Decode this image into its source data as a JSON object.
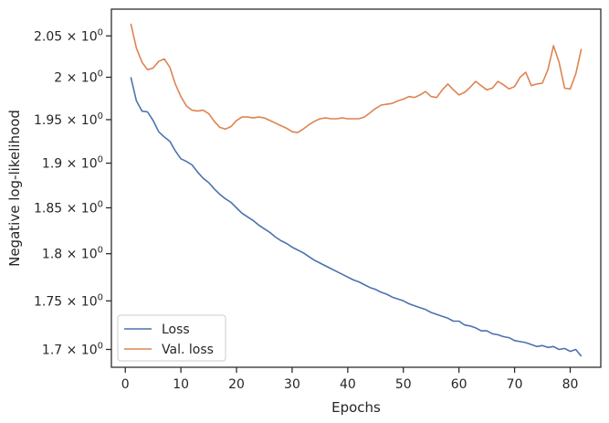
{
  "chart_data": {
    "type": "line",
    "xlabel": "Epochs",
    "ylabel": "Negative log-likelihood",
    "xlim": [
      -2.5,
      85.5
    ],
    "ylim": [
      1.682,
      2.083
    ],
    "yscale": "log",
    "grid": false,
    "legend_position": "lower-left",
    "x_ticks": [
      0,
      10,
      20,
      30,
      40,
      50,
      60,
      70,
      80
    ],
    "x_tick_labels": [
      "0",
      "10",
      "20",
      "30",
      "40",
      "50",
      "60",
      "70",
      "80"
    ],
    "y_ticks": [
      1.7,
      1.75,
      1.8,
      1.85,
      1.9,
      1.95,
      2.0,
      2.05
    ],
    "y_tick_labels": [
      {
        "mantissa": "1.7",
        "times": "×",
        "base": "10",
        "exp": "0"
      },
      {
        "mantissa": "1.75",
        "times": "×",
        "base": "10",
        "exp": "0"
      },
      {
        "mantissa": "1.8",
        "times": "×",
        "base": "10",
        "exp": "0"
      },
      {
        "mantissa": "1.85",
        "times": "×",
        "base": "10",
        "exp": "0"
      },
      {
        "mantissa": "1.9",
        "times": "×",
        "base": "10",
        "exp": "0"
      },
      {
        "mantissa": "1.95",
        "times": "×",
        "base": "10",
        "exp": "0"
      },
      {
        "mantissa": "2",
        "times": "×",
        "base": "10",
        "exp": "0"
      },
      {
        "mantissa": "2.05",
        "times": "×",
        "base": "10",
        "exp": "0"
      }
    ],
    "series": [
      {
        "name": "Loss",
        "color": "#4c72b0",
        "x": [
          1,
          2,
          3,
          4,
          5,
          6,
          7,
          8,
          9,
          10,
          11,
          12,
          13,
          14,
          15,
          16,
          17,
          18,
          19,
          20,
          21,
          22,
          23,
          24,
          25,
          26,
          27,
          28,
          29,
          30,
          31,
          32,
          33,
          34,
          35,
          36,
          37,
          38,
          39,
          40,
          41,
          42,
          43,
          44,
          45,
          46,
          47,
          48,
          49,
          50,
          51,
          52,
          53,
          54,
          55,
          56,
          57,
          58,
          59,
          60,
          61,
          62,
          63,
          64,
          65,
          66,
          67,
          68,
          69,
          70,
          71,
          72,
          73,
          74,
          75,
          76,
          77,
          78,
          79,
          80,
          81,
          82
        ],
        "y": [
          2.0,
          1.972,
          1.96,
          1.959,
          1.949,
          1.936,
          1.93,
          1.925,
          1.914,
          1.905,
          1.902,
          1.898,
          1.89,
          1.883,
          1.878,
          1.871,
          1.865,
          1.86,
          1.856,
          1.85,
          1.844,
          1.84,
          1.836,
          1.831,
          1.827,
          1.823,
          1.818,
          1.814,
          1.811,
          1.807,
          1.804,
          1.801,
          1.797,
          1.793,
          1.79,
          1.787,
          1.784,
          1.781,
          1.778,
          1.775,
          1.772,
          1.77,
          1.767,
          1.764,
          1.762,
          1.759,
          1.757,
          1.754,
          1.752,
          1.75,
          1.747,
          1.745,
          1.743,
          1.741,
          1.738,
          1.736,
          1.734,
          1.732,
          1.729,
          1.729,
          1.725,
          1.724,
          1.722,
          1.719,
          1.719,
          1.716,
          1.715,
          1.713,
          1.712,
          1.709,
          1.708,
          1.707,
          1.705,
          1.703,
          1.704,
          1.702,
          1.703,
          1.7,
          1.701,
          1.698,
          1.7,
          1.693
        ]
      },
      {
        "name": "Val. loss",
        "color": "#dd8452",
        "x": [
          1,
          2,
          3,
          4,
          5,
          6,
          7,
          8,
          9,
          10,
          11,
          12,
          13,
          14,
          15,
          16,
          17,
          18,
          19,
          20,
          21,
          22,
          23,
          24,
          25,
          26,
          27,
          28,
          29,
          30,
          31,
          32,
          33,
          34,
          35,
          36,
          37,
          38,
          39,
          40,
          41,
          42,
          43,
          44,
          45,
          46,
          47,
          48,
          49,
          50,
          51,
          52,
          53,
          54,
          55,
          56,
          57,
          58,
          59,
          60,
          61,
          62,
          63,
          64,
          65,
          66,
          67,
          68,
          69,
          70,
          71,
          72,
          73,
          74,
          75,
          76,
          77,
          78,
          79,
          80,
          81,
          82
        ],
        "y": [
          2.065,
          2.035,
          2.018,
          2.009,
          2.011,
          2.019,
          2.022,
          2.012,
          1.992,
          1.977,
          1.966,
          1.961,
          1.96,
          1.961,
          1.957,
          1.948,
          1.941,
          1.939,
          1.942,
          1.949,
          1.953,
          1.953,
          1.952,
          1.953,
          1.952,
          1.949,
          1.946,
          1.943,
          1.94,
          1.936,
          1.935,
          1.939,
          1.944,
          1.948,
          1.951,
          1.952,
          1.951,
          1.951,
          1.952,
          1.951,
          1.951,
          1.951,
          1.953,
          1.958,
          1.963,
          1.967,
          1.968,
          1.969,
          1.972,
          1.974,
          1.977,
          1.976,
          1.979,
          1.983,
          1.977,
          1.976,
          1.985,
          1.992,
          1.985,
          1.979,
          1.982,
          1.988,
          1.995,
          1.99,
          1.985,
          1.987,
          1.995,
          1.991,
          1.986,
          1.989,
          2.0,
          2.006,
          1.99,
          1.992,
          1.993,
          2.009,
          2.038,
          2.018,
          1.987,
          1.986,
          2.004,
          2.034
        ]
      }
    ]
  }
}
